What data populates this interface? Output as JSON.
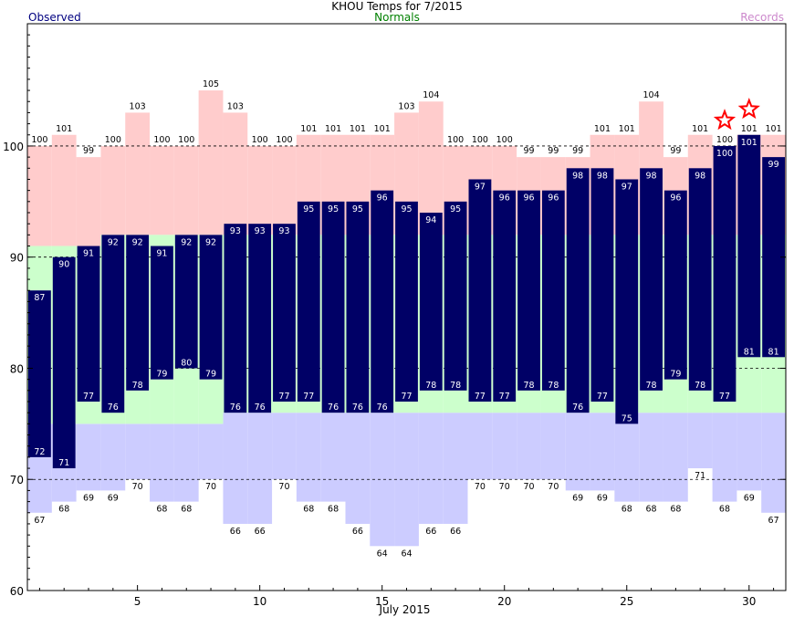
{
  "title": "KHOU Temps for 7/2015",
  "legend": {
    "observed": "Observed",
    "normals": "Normals",
    "records": "Records"
  },
  "colors": {
    "observed": "#000066",
    "observed_label": "#ffffff",
    "normals": "#ccffcc",
    "records_high": "#ffcccc",
    "records_low": "#ccccff",
    "star": "#ff0000"
  },
  "chart_data": {
    "type": "bar",
    "title": "KHOU Temps for 7/2015",
    "xlabel": "July 2015",
    "ylabel": "",
    "ylim": [
      60,
      111
    ],
    "xlim": [
      0.5,
      31.5
    ],
    "yticks": [
      60,
      70,
      80,
      90,
      100
    ],
    "xticks": [
      5,
      10,
      15,
      20,
      25,
      30
    ],
    "grid": "dashed at 70, 80, 90, 100",
    "days": [
      1,
      2,
      3,
      4,
      5,
      6,
      7,
      8,
      9,
      10,
      11,
      12,
      13,
      14,
      15,
      16,
      17,
      18,
      19,
      20,
      21,
      22,
      23,
      24,
      25,
      26,
      27,
      28,
      29,
      30,
      31
    ],
    "observed_high": [
      87,
      90,
      91,
      92,
      92,
      91,
      92,
      92,
      93,
      93,
      93,
      95,
      95,
      95,
      96,
      95,
      94,
      95,
      97,
      96,
      96,
      96,
      98,
      98,
      97,
      98,
      96,
      98,
      100,
      101,
      99
    ],
    "observed_low": [
      72,
      71,
      77,
      76,
      78,
      79,
      80,
      79,
      76,
      76,
      77,
      77,
      76,
      76,
      76,
      77,
      78,
      78,
      77,
      77,
      78,
      78,
      76,
      77,
      75,
      78,
      79,
      78,
      77,
      81,
      81
    ],
    "normal_high": [
      91,
      91,
      91,
      92,
      92,
      92,
      92,
      92,
      92,
      92,
      92,
      92,
      92,
      92,
      92,
      92,
      92,
      92,
      92,
      92,
      92,
      92,
      92,
      92,
      92,
      92,
      92,
      92,
      92,
      92,
      92
    ],
    "normal_low": [
      75,
      75,
      75,
      75,
      75,
      75,
      75,
      75,
      76,
      76,
      76,
      76,
      76,
      76,
      76,
      76,
      76,
      76,
      76,
      76,
      76,
      76,
      76,
      76,
      76,
      76,
      76,
      76,
      76,
      76,
      76
    ],
    "record_high": [
      100,
      101,
      99,
      100,
      103,
      100,
      100,
      105,
      103,
      100,
      100,
      101,
      101,
      101,
      101,
      103,
      104,
      100,
      100,
      100,
      99,
      99,
      99,
      101,
      101,
      104,
      99,
      101,
      100,
      101,
      101
    ],
    "record_low": [
      67,
      68,
      69,
      69,
      70,
      68,
      68,
      70,
      66,
      66,
      70,
      68,
      68,
      66,
      64,
      64,
      66,
      66,
      70,
      70,
      70,
      70,
      69,
      69,
      68,
      68,
      68,
      71,
      68,
      69,
      67
    ],
    "record_set_days": [
      29,
      30
    ]
  }
}
